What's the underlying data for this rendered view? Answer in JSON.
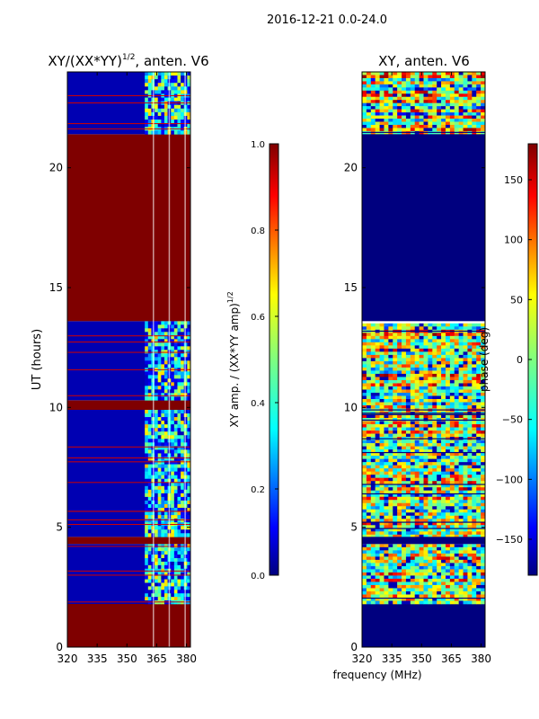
{
  "figure": {
    "suptitle": "2016-12-21 0.0-24.0",
    "shared_xlabel": "frequency (MHz)"
  },
  "colors": {
    "jet": [
      "#00007f",
      "#0000ff",
      "#007fff",
      "#00ffff",
      "#7fff7f",
      "#ffff00",
      "#ff7f00",
      "#ff0000",
      "#7f0000"
    ],
    "background": "#ffffff",
    "axis": "#000000"
  },
  "chart_data": [
    {
      "type": "heatmap",
      "title_main": "XY/(XX*YY)",
      "title_exp": "1/2",
      "title_tail": ", anten. V6",
      "xlabel": "",
      "ylabel": "UT (hours)",
      "xlim": [
        320,
        382
      ],
      "ylim": [
        0,
        24
      ],
      "xticks": [
        320,
        335,
        350,
        365,
        380
      ],
      "yticks": [
        0,
        5,
        10,
        15,
        20
      ],
      "colorbar": {
        "label_main": "XY amp. / (XX*YY amp)",
        "label_exp": "1/2",
        "range": [
          0.0,
          1.0
        ],
        "ticks": [
          "0.0",
          "0.2",
          "0.4",
          "0.6",
          "0.8",
          "1.0"
        ]
      },
      "time_segments": [
        {
          "from": 0.0,
          "to": 1.8,
          "state": "saturated",
          "value": 1.0
        },
        {
          "from": 1.8,
          "to": 4.3,
          "state": "data",
          "value": 0.05
        },
        {
          "from": 4.3,
          "to": 4.6,
          "state": "saturated",
          "value": 1.0
        },
        {
          "from": 4.6,
          "to": 9.9,
          "state": "data",
          "value": 0.05
        },
        {
          "from": 9.9,
          "to": 10.3,
          "state": "saturated",
          "value": 1.0
        },
        {
          "from": 10.3,
          "to": 13.6,
          "state": "data",
          "value": 0.05
        },
        {
          "from": 13.6,
          "to": 21.4,
          "state": "saturated",
          "value": 1.0
        },
        {
          "from": 21.4,
          "to": 24.0,
          "state": "data",
          "value": 0.05
        }
      ],
      "signal_band_mhz": [
        359,
        382
      ]
    },
    {
      "type": "heatmap",
      "title": "XY, anten. V6",
      "xlabel": "",
      "ylabel": "",
      "xlim": [
        320,
        382
      ],
      "ylim": [
        0,
        24
      ],
      "xticks": [
        320,
        335,
        350,
        365,
        380
      ],
      "yticks": [
        0,
        5,
        10,
        15,
        20
      ],
      "colorbar": {
        "label": "phase (deg)",
        "range": [
          -180,
          180
        ],
        "ticks": [
          "150",
          "100",
          "50",
          "0",
          "−50",
          "−100",
          "−150"
        ],
        "tick_values": [
          150,
          100,
          50,
          0,
          -50,
          -100,
          -150
        ]
      },
      "time_segments": [
        {
          "from": 0.0,
          "to": 1.8,
          "state": "flagged",
          "value": -180
        },
        {
          "from": 1.8,
          "to": 21.4,
          "state": "data"
        },
        {
          "from": 21.4,
          "to": 24.0,
          "state": "data"
        }
      ],
      "flagged_ranges": [
        [
          13.6,
          21.4
        ],
        [
          4.3,
          4.6
        ]
      ]
    }
  ]
}
